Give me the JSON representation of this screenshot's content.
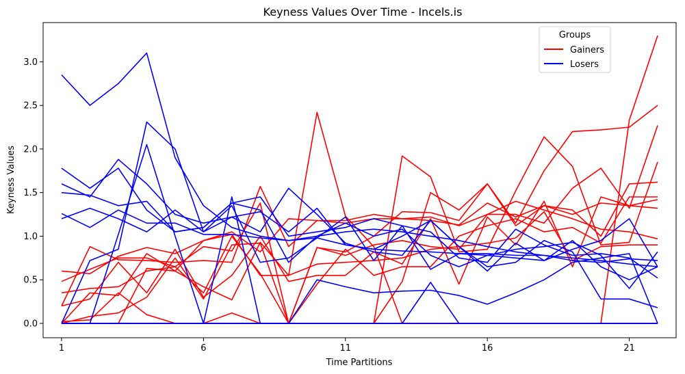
{
  "chart_data": {
    "type": "line",
    "title": "Keyness Values Over Time - Incels.is",
    "xlabel": "Time Partitions",
    "ylabel": "Keyness Values",
    "xlim": [
      0.35,
      22.65
    ],
    "ylim": [
      -0.165,
      3.45
    ],
    "xticks": [
      1,
      6,
      11,
      16,
      21
    ],
    "yticks": [
      0.0,
      0.5,
      1.0,
      1.5,
      2.0,
      2.5,
      3.0
    ],
    "ytick_labels": [
      "0.0",
      "0.5",
      "1.0",
      "1.5",
      "2.0",
      "2.5",
      "3.0"
    ],
    "grid": false,
    "legend": {
      "title": "Groups",
      "placement": "upper right",
      "entries": [
        {
          "label": "Gainers",
          "color": "#ff0000"
        },
        {
          "label": "Losers",
          "color": "#0000ff"
        }
      ]
    },
    "x": [
      1,
      2,
      3,
      4,
      5,
      6,
      7,
      8,
      9,
      10,
      11,
      12,
      13,
      14,
      15,
      16,
      17,
      18,
      19,
      20,
      21,
      22
    ],
    "series": [
      {
        "group": "Gainers",
        "color": "#ff0000",
        "values": [
          0.2,
          0.88,
          0.73,
          0.72,
          0.7,
          0.72,
          0.7,
          1.57,
          0.88,
          1.18,
          1.15,
          1.2,
          1.2,
          1.18,
          1.13,
          1.38,
          1.22,
          1.35,
          1.25,
          1.38,
          1.35,
          1.32
        ]
      },
      {
        "group": "Gainers",
        "color": "#ff0000",
        "values": [
          0.6,
          0.57,
          0.77,
          0.87,
          0.8,
          0.95,
          1.05,
          0.82,
          1.2,
          1.18,
          1.18,
          1.25,
          1.2,
          1.22,
          1.12,
          1.25,
          1.4,
          1.3,
          1.2,
          1.08,
          1.05,
          0.97
        ]
      },
      {
        "group": "Gainers",
        "color": "#ff0000",
        "values": [
          0.48,
          0.62,
          0.75,
          0.75,
          0.65,
          0.88,
          0.83,
          1.38,
          0.0,
          0.87,
          0.82,
          1.0,
          1.28,
          1.27,
          1.18,
          1.6,
          1.12,
          1.35,
          1.3,
          1.0,
          1.6,
          1.62
        ]
      },
      {
        "group": "Gainers",
        "color": "#ff0000",
        "values": [
          0.35,
          0.4,
          0.42,
          0.6,
          0.65,
          0.35,
          1.0,
          0.57,
          0.0,
          0.87,
          0.78,
          0.9,
          0.95,
          0.88,
          0.85,
          1.25,
          1.25,
          1.15,
          1.55,
          1.78,
          1.32,
          2.27
        ]
      },
      {
        "group": "Gainers",
        "color": "#ff0000",
        "values": [
          0.02,
          0.04,
          0.35,
          0.1,
          0.0,
          0.0,
          0.12,
          0.0,
          0.0,
          0.0,
          0.0,
          0.0,
          0.0,
          0.0,
          0.0,
          0.0,
          0.0,
          0.0,
          0.0,
          0.0,
          0.0,
          0.0
        ]
      },
      {
        "group": "Gainers",
        "color": "#ff0000",
        "values": [
          0.0,
          0.0,
          0.0,
          0.63,
          0.6,
          0.95,
          1.02,
          0.55,
          0.55,
          2.42,
          1.23,
          0.88,
          0.0,
          0.0,
          0.0,
          0.0,
          0.0,
          0.0,
          0.0,
          0.0,
          0.0,
          0.0
        ]
      },
      {
        "group": "Gainers",
        "color": "#ff0000",
        "values": [
          0.0,
          0.0,
          0.0,
          0.0,
          0.0,
          0.0,
          0.0,
          0.0,
          0.0,
          0.0,
          0.0,
          0.0,
          0.48,
          1.5,
          1.3,
          1.6,
          1.15,
          1.75,
          2.2,
          2.22,
          2.25,
          2.5
        ]
      },
      {
        "group": "Gainers",
        "color": "#ff0000",
        "values": [
          0.0,
          0.0,
          0.0,
          0.0,
          0.0,
          0.0,
          0.0,
          0.0,
          0.0,
          0.0,
          0.0,
          0.0,
          0.0,
          0.0,
          0.0,
          0.0,
          0.0,
          0.0,
          0.0,
          0.0,
          2.33,
          3.3
        ]
      },
      {
        "group": "Gainers",
        "color": "#ff0000",
        "values": [
          0.0,
          0.0,
          0.0,
          0.0,
          0.0,
          0.0,
          0.0,
          0.0,
          0.0,
          0.0,
          0.0,
          0.0,
          1.92,
          1.68,
          0.82,
          0.85,
          1.52,
          2.14,
          1.8,
          0.9,
          0.93,
          1.85
        ]
      },
      {
        "group": "Gainers",
        "color": "#ff0000",
        "values": [
          0.2,
          0.28,
          0.7,
          0.35,
          0.85,
          0.3,
          0.55,
          1.0,
          0.48,
          0.55,
          0.55,
          0.82,
          0.68,
          1.2,
          0.45,
          1.22,
          0.9,
          1.4,
          0.65,
          1.45,
          1.35,
          1.42
        ]
      },
      {
        "group": "Gainers",
        "color": "#ff0000",
        "values": [
          0.0,
          0.35,
          0.32,
          0.8,
          0.6,
          0.42,
          0.27,
          0.93,
          0.55,
          0.68,
          0.7,
          0.72,
          0.75,
          0.85,
          0.88,
          0.92,
          0.98,
          1.28,
          0.72,
          0.88,
          0.9,
          0.9
        ]
      },
      {
        "group": "Gainers",
        "color": "#ff0000",
        "values": [
          0.0,
          0.08,
          0.12,
          0.3,
          0.75,
          0.28,
          0.9,
          0.92,
          0.0,
          0.45,
          0.85,
          0.55,
          0.65,
          0.65,
          1.0,
          1.12,
          1.2,
          1.05,
          1.1,
          0.92,
          1.45,
          1.45
        ]
      },
      {
        "group": "Losers",
        "color": "#0000ff",
        "values": [
          2.85,
          2.5,
          2.75,
          3.1,
          1.9,
          1.35,
          1.1,
          1.0,
          0.95,
          1.0,
          1.05,
          1.08,
          1.05,
          1.0,
          0.95,
          0.88,
          0.82,
          0.78,
          0.75,
          0.72,
          0.68,
          0.65
        ]
      },
      {
        "group": "Losers",
        "color": "#0000ff",
        "values": [
          1.78,
          1.55,
          1.78,
          1.3,
          1.05,
          1.1,
          1.38,
          1.45,
          1.0,
          1.05,
          1.1,
          1.2,
          1.12,
          1.05,
          0.75,
          0.7,
          1.08,
          0.9,
          0.78,
          0.8,
          0.75,
          0.52
        ]
      },
      {
        "group": "Losers",
        "color": "#0000ff",
        "values": [
          1.6,
          1.45,
          1.88,
          1.6,
          1.25,
          1.15,
          1.22,
          1.05,
          1.55,
          1.25,
          0.92,
          0.82,
          0.78,
          1.18,
          0.88,
          0.6,
          0.92,
          0.72,
          0.85,
          0.95,
          1.2,
          0.65
        ]
      },
      {
        "group": "Losers",
        "color": "#0000ff",
        "values": [
          1.5,
          1.47,
          1.35,
          1.4,
          1.05,
          1.1,
          1.38,
          1.3,
          0.7,
          1.0,
          1.15,
          1.0,
          1.08,
          0.78,
          0.65,
          0.78,
          0.85,
          0.88,
          0.93,
          0.78,
          0.4,
          0.82
        ]
      },
      {
        "group": "Losers",
        "color": "#0000ff",
        "values": [
          1.26,
          1.1,
          1.3,
          1.15,
          1.15,
          1.02,
          1.02,
          0.98,
          0.95,
          0.98,
          0.9,
          0.85,
          0.83,
          0.82,
          0.8,
          0.8,
          0.78,
          0.78,
          0.72,
          0.7,
          0.74,
          0.72
        ]
      },
      {
        "group": "Losers",
        "color": "#0000ff",
        "values": [
          1.2,
          1.32,
          1.2,
          1.05,
          1.3,
          1.05,
          1.35,
          0.7,
          0.75,
          0.98,
          1.22,
          0.72,
          1.12,
          0.62,
          0.8,
          0.78,
          0.75,
          0.72,
          0.95,
          0.65,
          0.5,
          0.65
        ]
      },
      {
        "group": "Losers",
        "color": "#0000ff",
        "values": [
          0.0,
          0.72,
          0.85,
          2.31,
          2.0,
          1.05,
          1.22,
          1.28,
          1.05,
          1.32,
          0.9,
          0.85,
          1.0,
          1.18,
          0.88,
          0.65,
          0.7,
          0.95,
          0.82,
          0.28,
          0.28,
          0.18
        ]
      },
      {
        "group": "Losers",
        "color": "#0000ff",
        "values": [
          0.0,
          0.0,
          1.02,
          2.05,
          1.0,
          0.0,
          1.45,
          0.0,
          0.0,
          0.0,
          0.0,
          0.0,
          0.0,
          0.47,
          0.0,
          0.0,
          0.0,
          0.0,
          0.0,
          0.0,
          0.0,
          0.0
        ]
      },
      {
        "group": "Losers",
        "color": "#0000ff",
        "values": [
          0.0,
          0.0,
          0.0,
          0.0,
          0.0,
          0.0,
          0.0,
          0.0,
          0.0,
          0.5,
          0.42,
          0.35,
          0.37,
          0.38,
          0.32,
          0.22,
          0.35,
          0.5,
          0.7,
          0.75,
          0.8,
          0.0
        ]
      },
      {
        "group": "Losers",
        "color": "#0000ff",
        "values": [
          0.0,
          0.0,
          0.0,
          0.0,
          0.0,
          0.0,
          0.0,
          0.0,
          0.0,
          0.0,
          0.0,
          0.0,
          0.0,
          0.0,
          0.0,
          0.0,
          0.0,
          0.0,
          0.0,
          0.0,
          0.0,
          0.0
        ]
      },
      {
        "group": "Losers",
        "color": "#0000ff",
        "values": [
          0.0,
          0.0,
          0.0,
          0.0,
          0.0,
          0.0,
          0.0,
          0.0,
          0.0,
          0.0,
          0.0,
          0.0,
          0.0,
          0.0,
          0.0,
          0.0,
          0.0,
          0.0,
          0.0,
          0.0,
          0.0,
          0.0
        ]
      }
    ]
  }
}
